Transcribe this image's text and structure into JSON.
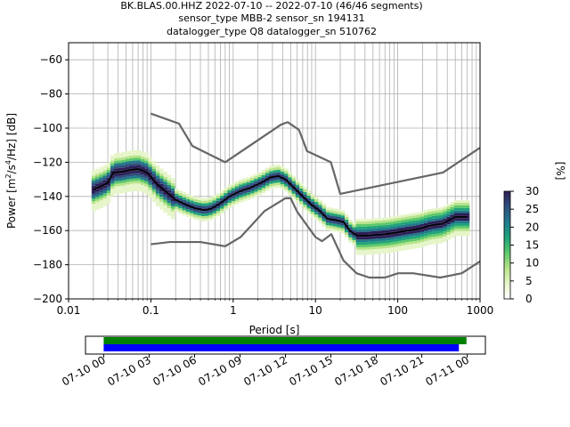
{
  "title": {
    "line1": "BK.BLAS.00.HHZ   2022-07-10 -- 2022-07-10  (46/46 segments)",
    "line2": "sensor_type MBB-2 sensor_sn 194131",
    "line3": "datalogger_type Q8 datalogger_sn 510762"
  },
  "chart_data": [
    {
      "type": "heatmap",
      "xlabel": "Period [s]",
      "ylabel": "Power [m²/s⁴/Hz] [dB]",
      "ylabel_parts": {
        "pre": "Power [m",
        "sup1": "2",
        "mid": "/s",
        "sup2": "4",
        "post": "/Hz] [dB]"
      },
      "x_scale": "log",
      "xlim": [
        0.01,
        1000
      ],
      "ylim": [
        -200,
        -50
      ],
      "x_ticks": [
        0.01,
        0.1,
        1,
        10,
        100,
        1000
      ],
      "x_tick_labels": [
        "0.01",
        "0.1",
        "1",
        "10",
        "100",
        "1000"
      ],
      "y_ticks": [
        -200,
        -180,
        -160,
        -140,
        -120,
        -100,
        -80,
        -60
      ],
      "y_tick_labels": [
        "−200",
        "−180",
        "−160",
        "−140",
        "−120",
        "−100",
        "−80",
        "−60"
      ],
      "grid": true,
      "colorbar": {
        "label": "[%]",
        "min": 0,
        "max": 30,
        "ticks": [
          0,
          5,
          10,
          15,
          20,
          25,
          30
        ],
        "colors": [
          "#ffffff",
          "#e6f5c9",
          "#b7e38a",
          "#5cc86b",
          "#1fa37a",
          "#227a8c",
          "#30507f",
          "#2d1f55"
        ]
      },
      "series": [
        {
          "name": "high_noise_model",
          "color": "#666666",
          "x": [
            0.1,
            0.22,
            0.32,
            0.8,
            3.8,
            4.6,
            6.3,
            7.9,
            15.4,
            20,
            354.8,
            1000
          ],
          "y": [
            -91.5,
            -97.4,
            -110.5,
            -120,
            -98,
            -96.5,
            -101,
            -113.5,
            -120,
            -138.5,
            -126,
            -111.5
          ]
        },
        {
          "name": "low_noise_model",
          "color": "#666666",
          "x": [
            0.1,
            0.17,
            0.4,
            0.8,
            1.24,
            2.4,
            4.3,
            5.0,
            6.0,
            10.0,
            12.0,
            15.6,
            21.9,
            31.6,
            45,
            70,
            101,
            154,
            328,
            600,
            1000
          ],
          "y": [
            -168,
            -166.7,
            -166.7,
            -169.2,
            -163.7,
            -148.6,
            -141.1,
            -141.1,
            -149,
            -163.8,
            -166.2,
            -162.1,
            -177.5,
            -185,
            -187.5,
            -187.5,
            -185,
            -185,
            -187.5,
            -185,
            -178
          ]
        },
        {
          "name": "mode",
          "color": "#000000",
          "x": [
            0.02,
            0.025,
            0.03,
            0.035,
            0.045,
            0.055,
            0.07,
            0.09,
            0.12,
            0.16,
            0.2,
            0.27,
            0.35,
            0.45,
            0.55,
            0.7,
            0.9,
            1.2,
            1.6,
            2.2,
            2.8,
            3.5,
            4.3,
            5.5,
            7,
            9,
            11,
            14,
            18,
            22,
            26,
            32,
            40,
            55,
            75,
            100,
            130,
            180,
            250,
            350,
            500,
            700
          ],
          "y": [
            -136,
            -134,
            -132,
            -126,
            -125.5,
            -124.5,
            -124,
            -126,
            -133,
            -138,
            -142,
            -145,
            -147,
            -148,
            -147,
            -144,
            -140,
            -137,
            -135,
            -132,
            -129,
            -128,
            -130,
            -135,
            -140,
            -145,
            -148,
            -153,
            -154,
            -155,
            -160,
            -163,
            -163,
            -162.5,
            -162,
            -161,
            -160,
            -159,
            -157,
            -156,
            -152,
            -152
          ]
        }
      ]
    },
    {
      "type": "bar",
      "x_tick_labels": [
        "07-10 00",
        "07-10 03",
        "07-10 06",
        "07-10 09",
        "07-10 12",
        "07-10 15",
        "07-10 18",
        "07-10 21",
        "07-11 00"
      ],
      "x_tick_hours": [
        0,
        3,
        6,
        9,
        12,
        15,
        18,
        21,
        24
      ],
      "xlim_hours": [
        -1.2,
        25.2
      ],
      "series": [
        {
          "name": "data_coverage",
          "color": "#008000",
          "start_hour": 0,
          "end_hour": 23.95
        },
        {
          "name": "psd_coverage",
          "color": "#0000ff",
          "start_hour": 0,
          "end_hour": 23.45
        }
      ]
    }
  ]
}
